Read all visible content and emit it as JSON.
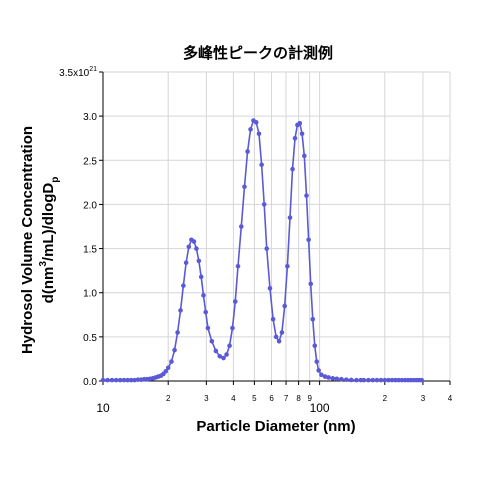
{
  "chart_data": {
    "type": "line",
    "title": "多峰性ピークの計測例",
    "xlabel": "Particle Diameter (nm)",
    "ylabel_line1": "Hydrosol Volume Concentration",
    "ylabel_line2": {
      "base": "d(nm",
      "sup": "3",
      "mid": "/mL)/dlogD",
      "sub": "p"
    },
    "x_scale": "log",
    "xlim": [
      10,
      400
    ],
    "ylim": [
      0,
      3.5e+21
    ],
    "grid": true,
    "legend": "none",
    "x_ticks": [
      {
        "value": 10,
        "label": "10"
      },
      {
        "value": 20,
        "label": "2"
      },
      {
        "value": 30,
        "label": "3"
      },
      {
        "value": 40,
        "label": "4"
      },
      {
        "value": 50,
        "label": "5"
      },
      {
        "value": 60,
        "label": "6"
      },
      {
        "value": 70,
        "label": "7"
      },
      {
        "value": 80,
        "label": "8"
      },
      {
        "value": 90,
        "label": "9"
      },
      {
        "value": 100,
        "label": "100"
      },
      {
        "value": 200,
        "label": "2"
      },
      {
        "value": 300,
        "label": "3"
      },
      {
        "value": 400,
        "label": "4"
      }
    ],
    "y_ticks": [
      {
        "value": 0.0,
        "label": "0.0"
      },
      {
        "value": 5e+20,
        "label": "0.5"
      },
      {
        "value": 1e+21,
        "label": "1.0"
      },
      {
        "value": 1.5e+21,
        "label": "1.5"
      },
      {
        "value": 2e+21,
        "label": "2.0"
      },
      {
        "value": 2.5e+21,
        "label": "2.5"
      },
      {
        "value": 3e+21,
        "label": "3.0"
      },
      {
        "value": 3.5e+21,
        "label": "3.5x10",
        "sup": "21"
      }
    ],
    "series": [
      {
        "color": "#5a5ad6",
        "x": [
          10.0,
          10.5,
          11.0,
          11.5,
          12.0,
          12.5,
          13.0,
          13.5,
          14.0,
          14.5,
          15.0,
          15.5,
          16.0,
          16.5,
          17.0,
          17.5,
          18.0,
          18.5,
          19.0,
          19.5,
          20.0,
          20.7,
          21.4,
          22.1,
          22.8,
          23.5,
          24.2,
          24.9,
          25.6,
          26.3,
          27.0,
          27.7,
          28.4,
          29.1,
          29.8,
          30.5,
          31.8,
          33.2,
          34.6,
          36.0,
          37.2,
          38.4,
          39.6,
          40.8,
          42.0,
          43.5,
          45.0,
          46.5,
          48.0,
          49.5,
          51.0,
          52.5,
          54.0,
          55.5,
          57.0,
          59.0,
          61.0,
          63.0,
          65.0,
          67.0,
          69.0,
          71.0,
          73.0,
          75.0,
          77.0,
          79.0,
          81.0,
          83.0,
          85.0,
          87.0,
          89.0,
          91.0,
          93.0,
          95.0,
          97.0,
          99.0,
          102.0,
          106.0,
          110.0,
          115.0,
          120.0,
          126.0,
          133.0,
          140.0,
          148.0,
          155.0,
          160.0,
          168.0,
          176.0,
          184.0,
          192.0,
          200.0,
          208.0,
          216.0,
          224.0,
          232.0,
          240.0,
          248.0,
          256.0,
          264.0,
          272.0,
          280.0,
          288.0,
          296.0
        ],
        "y": [
          1e+19,
          1e+19,
          1e+19,
          1e+19,
          1e+19,
          1e+19,
          1e+19,
          1e+19,
          1e+19,
          1.5e+19,
          1.5e+19,
          2e+19,
          2e+19,
          2.5e+19,
          3e+19,
          4e+19,
          5e+19,
          6e+19,
          8e+19,
          1.1e+20,
          1.5e+20,
          2.2e+20,
          3.5e+20,
          5.5e+20,
          8e+20,
          1.08e+21,
          1.34e+21,
          1.52e+21,
          1.6e+21,
          1.58e+21,
          1.5e+21,
          1.36e+21,
          1.18e+21,
          9.7e+20,
          7.8e+20,
          6e+20,
          4.5e+20,
          3.4e+20,
          2.8e+20,
          2.6e+20,
          3e+20,
          4e+20,
          6e+20,
          9e+20,
          1.3e+21,
          1.75e+21,
          2.2e+21,
          2.6e+21,
          2.85e+21,
          2.95e+21,
          2.93e+21,
          2.8e+21,
          2.45e+21,
          2e+21,
          1.5e+21,
          1.05e+21,
          7e+20,
          5e+20,
          4.5e+20,
          5.5e+20,
          8.5e+20,
          1.3e+21,
          1.85e+21,
          2.4e+21,
          2.75e+21,
          2.9e+21,
          2.92e+21,
          2.8e+21,
          2.55e+21,
          2.1e+21,
          1.6e+21,
          1.1e+21,
          7e+20,
          4e+20,
          2.2e+20,
          1.2e+20,
          7e+19,
          5e+19,
          4e+19,
          3e+19,
          2.5e+19,
          2e+19,
          1.5e+19,
          1.2e+19,
          1e+19,
          1e+19,
          1e+19,
          1e+19,
          1e+19,
          1e+19,
          1e+19,
          1e+19,
          1e+19,
          1e+19,
          1e+19,
          1e+19,
          1e+19,
          1e+19,
          1e+19,
          1e+19,
          1e+19,
          1e+19,
          1e+19,
          1e+19
        ]
      }
    ]
  }
}
